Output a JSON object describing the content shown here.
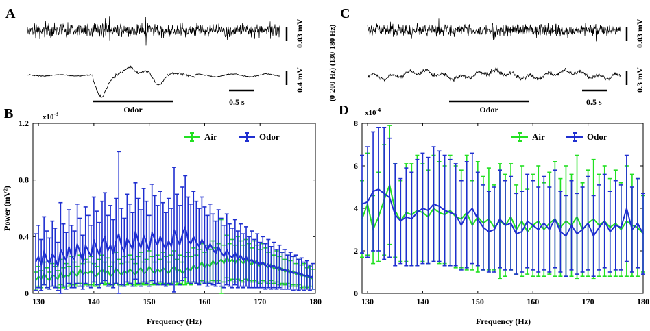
{
  "panels": {
    "A": {
      "label": "A",
      "scale_top": "0.03 mV",
      "scale_bottom": "0.4 mV",
      "time_scale": "0.5 s",
      "stim_label": "Odor"
    },
    "C": {
      "label": "C",
      "band_labels": "(0-200 Hz)  (130-180 Hz)",
      "scale_top": "0.03 mV",
      "scale_bottom": "0.3 mV",
      "time_scale": "0.5 s",
      "stim_label": "Odor"
    }
  },
  "colors": {
    "air": "#22e022",
    "odor": "#1f2fd0",
    "trace": "#000000"
  },
  "chart_data": [
    {
      "id": "B",
      "panel_label": "B",
      "type": "line",
      "error_bars": true,
      "xlabel": "Frequency (Hz)",
      "ylabel": "Power  (mV²)",
      "exponent_label": "x10",
      "exponent": "-3",
      "xlim": [
        129,
        180
      ],
      "ylim": [
        0,
        1.2
      ],
      "xticks": [
        "130",
        "140",
        "150",
        "160",
        "170",
        "180"
      ],
      "yticks": [
        "0",
        "0.4",
        "0.8",
        "1.2"
      ],
      "legend": [
        "Air",
        "Odor"
      ],
      "legend_position": "top-right",
      "x_start": 129.5,
      "x_step": 0.5,
      "series": [
        {
          "name": "Air",
          "color": "#22e022",
          "mean": [
            0.09,
            0.12,
            0.1,
            0.14,
            0.11,
            0.09,
            0.13,
            0.12,
            0.1,
            0.15,
            0.11,
            0.13,
            0.12,
            0.16,
            0.14,
            0.12,
            0.17,
            0.13,
            0.15,
            0.14,
            0.16,
            0.13,
            0.12,
            0.15,
            0.17,
            0.14,
            0.16,
            0.12,
            0.14,
            0.18,
            0.15,
            0.13,
            0.16,
            0.14,
            0.17,
            0.15,
            0.13,
            0.16,
            0.18,
            0.14,
            0.15,
            0.19,
            0.16,
            0.14,
            0.17,
            0.15,
            0.18,
            0.16,
            0.14,
            0.17,
            0.19,
            0.15,
            0.17,
            0.14,
            0.16,
            0.18,
            0.16,
            0.2,
            0.17,
            0.19,
            0.22,
            0.18,
            0.21,
            0.19,
            0.23,
            0.2,
            0.22,
            0.24,
            0.21,
            0.26,
            0.22,
            0.24,
            0.21,
            0.25,
            0.23,
            0.21,
            0.24,
            0.22,
            0.2,
            0.23,
            0.21,
            0.19,
            0.22,
            0.2,
            0.18,
            0.21,
            0.17,
            0.19,
            0.16,
            0.18,
            0.15,
            0.17,
            0.14,
            0.16,
            0.13,
            0.15,
            0.12,
            0.13,
            0.11,
            0.12,
            0.1
          ],
          "err": [
            0.06,
            0.07,
            0.06,
            0.08,
            0.07,
            0.06,
            0.08,
            0.07,
            0.06,
            0.09,
            0.07,
            0.08,
            0.07,
            0.1,
            0.08,
            0.07,
            0.1,
            0.08,
            0.09,
            0.08,
            0.1,
            0.08,
            0.07,
            0.09,
            0.1,
            0.08,
            0.09,
            0.07,
            0.08,
            0.11,
            0.09,
            0.08,
            0.1,
            0.08,
            0.1,
            0.09,
            0.08,
            0.1,
            0.11,
            0.08,
            0.09,
            0.11,
            0.1,
            0.08,
            0.1,
            0.09,
            0.11,
            0.1,
            0.08,
            0.1,
            0.11,
            0.09,
            0.1,
            0.08,
            0.1,
            0.11,
            0.1,
            0.12,
            0.1,
            0.12,
            0.13,
            0.11,
            0.13,
            0.12,
            0.14,
            0.12,
            0.13,
            0.28,
            0.13,
            0.15,
            0.13,
            0.14,
            0.13,
            0.15,
            0.14,
            0.13,
            0.14,
            0.13,
            0.12,
            0.14,
            0.13,
            0.12,
            0.13,
            0.12,
            0.11,
            0.12,
            0.1,
            0.11,
            0.1,
            0.11,
            0.09,
            0.1,
            0.09,
            0.1,
            0.08,
            0.09,
            0.08,
            0.08,
            0.07,
            0.07,
            0.07
          ]
        },
        {
          "name": "Odor",
          "color": "#1f2fd0",
          "mean": [
            0.22,
            0.26,
            0.2,
            0.3,
            0.24,
            0.21,
            0.28,
            0.25,
            0.19,
            0.31,
            0.27,
            0.23,
            0.33,
            0.26,
            0.24,
            0.35,
            0.29,
            0.22,
            0.34,
            0.3,
            0.26,
            0.38,
            0.32,
            0.27,
            0.36,
            0.4,
            0.3,
            0.34,
            0.28,
            0.37,
            0.42,
            0.33,
            0.29,
            0.39,
            0.35,
            0.31,
            0.44,
            0.37,
            0.32,
            0.41,
            0.36,
            0.3,
            0.43,
            0.38,
            0.34,
            0.4,
            0.35,
            0.31,
            0.37,
            0.33,
            0.45,
            0.39,
            0.34,
            0.42,
            0.47,
            0.38,
            0.35,
            0.4,
            0.36,
            0.33,
            0.38,
            0.34,
            0.3,
            0.35,
            0.31,
            0.28,
            0.33,
            0.29,
            0.26,
            0.31,
            0.27,
            0.25,
            0.29,
            0.24,
            0.27,
            0.23,
            0.26,
            0.22,
            0.24,
            0.21,
            0.23,
            0.2,
            0.22,
            0.19,
            0.21,
            0.18,
            0.2,
            0.17,
            0.19,
            0.16,
            0.17,
            0.15,
            0.16,
            0.14,
            0.15,
            0.13,
            0.14,
            0.12,
            0.13,
            0.11,
            0.12
          ],
          "err": [
            0.2,
            0.22,
            0.18,
            0.24,
            0.2,
            0.18,
            0.23,
            0.21,
            0.17,
            0.33,
            0.22,
            0.2,
            0.26,
            0.22,
            0.2,
            0.28,
            0.24,
            0.19,
            0.27,
            0.25,
            0.22,
            0.3,
            0.26,
            0.23,
            0.29,
            0.31,
            0.25,
            0.28,
            0.24,
            0.3,
            0.58,
            0.27,
            0.24,
            0.31,
            0.28,
            0.26,
            0.34,
            0.3,
            0.27,
            0.33,
            0.29,
            0.25,
            0.34,
            0.31,
            0.28,
            0.32,
            0.29,
            0.26,
            0.3,
            0.27,
            0.44,
            0.31,
            0.28,
            0.33,
            0.36,
            0.3,
            0.28,
            0.32,
            0.29,
            0.27,
            0.3,
            0.27,
            0.25,
            0.28,
            0.25,
            0.23,
            0.26,
            0.24,
            0.22,
            0.25,
            0.22,
            0.21,
            0.23,
            0.2,
            0.22,
            0.19,
            0.21,
            0.18,
            0.2,
            0.17,
            0.19,
            0.16,
            0.18,
            0.16,
            0.17,
            0.15,
            0.16,
            0.14,
            0.15,
            0.13,
            0.14,
            0.12,
            0.13,
            0.12,
            0.12,
            0.11,
            0.11,
            0.1,
            0.1,
            0.09,
            0.09
          ]
        }
      ]
    },
    {
      "id": "D",
      "panel_label": "D",
      "type": "line",
      "error_bars": true,
      "xlabel": "Frequency (Hz)",
      "ylabel": "",
      "exponent_label": "x10",
      "exponent": "-4",
      "xlim": [
        129,
        180
      ],
      "ylim": [
        0,
        8
      ],
      "xticks": [
        "130",
        "140",
        "150",
        "160",
        "170",
        "180"
      ],
      "yticks": [
        "0",
        "2",
        "4",
        "6",
        "8"
      ],
      "legend": [
        "Air",
        "Odor"
      ],
      "legend_position": "top-right",
      "x_start": 129,
      "x_step": 1,
      "series": [
        {
          "name": "Air",
          "color": "#22e022",
          "mean": [
            3.5,
            4.2,
            3.0,
            3.6,
            4.4,
            5.1,
            3.9,
            3.4,
            3.8,
            3.7,
            3.9,
            3.8,
            3.6,
            4.0,
            3.8,
            3.7,
            3.9,
            3.6,
            3.5,
            3.8,
            3.2,
            3.6,
            3.3,
            3.5,
            3.1,
            3.4,
            3.2,
            3.6,
            3.0,
            3.4,
            2.9,
            3.2,
            3.4,
            3.0,
            3.3,
            3.5,
            3.1,
            3.4,
            3.2,
            3.6,
            3.0,
            3.3,
            3.5,
            3.2,
            3.4,
            3.1,
            3.3,
            3.0,
            3.4,
            3.2,
            3.1,
            2.8
          ],
          "err": [
            1.8,
            2.4,
            1.6,
            2.1,
            2.6,
            2.8,
            2.2,
            1.9,
            2.3,
            2.4,
            2.6,
            2.3,
            2.2,
            2.5,
            2.4,
            2.3,
            2.6,
            2.4,
            2.3,
            2.7,
            2.1,
            2.6,
            2.2,
            2.4,
            2.0,
            2.7,
            2.4,
            2.5,
            2.1,
            2.6,
            2.0,
            2.4,
            2.6,
            2.2,
            2.4,
            2.7,
            2.3,
            2.6,
            2.4,
            2.9,
            2.2,
            2.5,
            2.8,
            2.4,
            2.6,
            2.3,
            2.5,
            2.2,
            2.6,
            2.4,
            2.3,
            1.8
          ]
        },
        {
          "name": "Odor",
          "color": "#1f2fd0",
          "mean": [
            4.2,
            4.3,
            4.8,
            4.9,
            4.7,
            4.5,
            3.7,
            3.4,
            3.6,
            3.5,
            3.8,
            4.0,
            3.9,
            4.2,
            4.1,
            3.9,
            3.8,
            3.7,
            3.2,
            3.7,
            4.0,
            3.5,
            3.1,
            2.9,
            3.0,
            3.5,
            3.2,
            3.3,
            2.8,
            2.9,
            3.4,
            3.2,
            3.0,
            3.3,
            3.0,
            3.5,
            2.9,
            2.7,
            3.2,
            2.8,
            3.0,
            3.3,
            2.7,
            3.1,
            3.4,
            2.9,
            3.2,
            3.1,
            4.0,
            3.0,
            3.3,
            2.8
          ],
          "err": [
            2.3,
            2.6,
            2.8,
            2.9,
            3.1,
            2.8,
            2.4,
            2.0,
            2.3,
            2.2,
            2.5,
            2.6,
            2.5,
            2.7,
            2.6,
            2.6,
            2.5,
            2.4,
            2.1,
            2.5,
            2.6,
            2.2,
            2.0,
            1.9,
            2.0,
            2.3,
            2.1,
            2.2,
            1.9,
            1.9,
            2.2,
            2.1,
            2.0,
            2.2,
            2.0,
            2.3,
            1.9,
            1.9,
            2.1,
            1.9,
            2.0,
            2.2,
            1.9,
            2.0,
            2.2,
            1.9,
            2.1,
            2.0,
            2.5,
            2.0,
            2.1,
            1.9
          ]
        }
      ]
    }
  ]
}
